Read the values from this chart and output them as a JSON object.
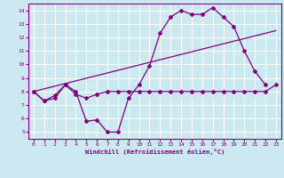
{
  "xlabel": "Windchill (Refroidissement éolien,°C)",
  "bg_color": "#cce8f0",
  "grid_color": "#ffffff",
  "line_color": "#800080",
  "line1_x": [
    0,
    1,
    2,
    3,
    4,
    5,
    6,
    7,
    8,
    9,
    10,
    11,
    12,
    13,
    14,
    15,
    16,
    17,
    18,
    19,
    20,
    21,
    22
  ],
  "line1_y": [
    8.0,
    7.3,
    7.5,
    8.5,
    8.0,
    5.8,
    5.9,
    5.0,
    5.0,
    7.5,
    8.5,
    9.9,
    12.3,
    13.5,
    14.0,
    13.7,
    13.7,
    14.2,
    13.5,
    12.8,
    11.0,
    9.5,
    8.5
  ],
  "line2_x": [
    0,
    1,
    2,
    3,
    4,
    5,
    6,
    7,
    8,
    9,
    10,
    11,
    12,
    13,
    14,
    15,
    16,
    17,
    18,
    19,
    20,
    21,
    22,
    23
  ],
  "line2_y": [
    8.0,
    7.3,
    7.7,
    8.5,
    7.8,
    7.5,
    7.8,
    8.0,
    8.0,
    8.0,
    8.0,
    8.0,
    8.0,
    8.0,
    8.0,
    8.0,
    8.0,
    8.0,
    8.0,
    8.0,
    8.0,
    8.0,
    8.0,
    8.5
  ],
  "line3_x": [
    0,
    23
  ],
  "line3_y": [
    8.0,
    12.5
  ],
  "ylim": [
    4.5,
    14.5
  ],
  "xlim": [
    -0.5,
    23.5
  ],
  "yticks": [
    5,
    6,
    7,
    8,
    9,
    10,
    11,
    12,
    13,
    14
  ],
  "xticks": [
    0,
    1,
    2,
    3,
    4,
    5,
    6,
    7,
    8,
    9,
    10,
    11,
    12,
    13,
    14,
    15,
    16,
    17,
    18,
    19,
    20,
    21,
    22,
    23
  ]
}
